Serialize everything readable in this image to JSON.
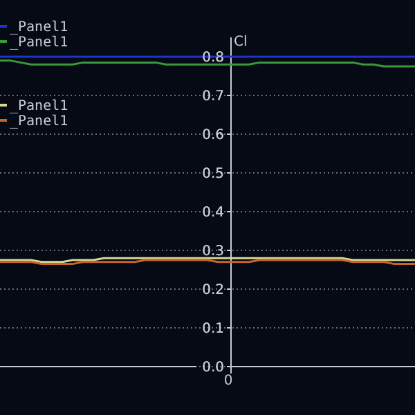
{
  "chart_data": {
    "type": "line",
    "ylabel": "Cl",
    "categories": [
      null,
      null,
      null,
      null,
      null,
      null,
      null,
      null,
      null,
      null,
      null,
      null,
      null,
      null,
      null,
      null,
      null,
      null,
      null,
      null,
      null,
      null,
      "0",
      null,
      null,
      null,
      null,
      null,
      null,
      null,
      null,
      null,
      null,
      null,
      null,
      null,
      null,
      null,
      null,
      null,
      null
    ],
    "series": [
      {
        "name": "_Panel1",
        "color": "#2233cc",
        "values": [
          0.8,
          0.8,
          0.8,
          0.8,
          0.8,
          0.8,
          0.8,
          0.8,
          0.8,
          0.8,
          0.8,
          0.8,
          0.8,
          0.8,
          0.8,
          0.8,
          0.8,
          0.8,
          0.8,
          0.8,
          0.8,
          0.8,
          0.8,
          0.8,
          0.8,
          0.8,
          0.8,
          0.8,
          0.8,
          0.8,
          0.8,
          0.8,
          0.8,
          0.8,
          0.8,
          0.8,
          0.8,
          0.8,
          0.8,
          0.8,
          0.8
        ]
      },
      {
        "name": "_Panel1",
        "color": "#3a9a3a",
        "values": [
          0.79,
          0.79,
          0.785,
          0.78,
          0.78,
          0.78,
          0.78,
          0.78,
          0.785,
          0.785,
          0.785,
          0.785,
          0.785,
          0.785,
          0.785,
          0.785,
          0.78,
          0.78,
          0.78,
          0.78,
          0.78,
          0.78,
          0.78,
          0.78,
          0.78,
          0.785,
          0.785,
          0.785,
          0.785,
          0.785,
          0.785,
          0.785,
          0.785,
          0.785,
          0.785,
          0.78,
          0.78,
          0.775,
          0.775,
          0.775,
          0.775
        ]
      },
      {
        "name": "_Panel1",
        "color": "#d8d890",
        "values": [
          0.275,
          0.275,
          0.275,
          0.275,
          0.27,
          0.27,
          0.27,
          0.275,
          0.275,
          0.275,
          0.28,
          0.28,
          0.28,
          0.28,
          0.28,
          0.28,
          0.28,
          0.28,
          0.28,
          0.28,
          0.28,
          0.28,
          0.28,
          0.28,
          0.28,
          0.28,
          0.28,
          0.28,
          0.28,
          0.28,
          0.28,
          0.28,
          0.28,
          0.28,
          0.275,
          0.275,
          0.275,
          0.275,
          0.275,
          0.275,
          0.275
        ]
      },
      {
        "name": "_Panel1",
        "color": "#c86428",
        "values": [
          0.27,
          0.27,
          0.27,
          0.27,
          0.265,
          0.265,
          0.265,
          0.265,
          0.27,
          0.27,
          0.27,
          0.27,
          0.27,
          0.27,
          0.275,
          0.275,
          0.275,
          0.275,
          0.275,
          0.275,
          0.275,
          0.27,
          0.27,
          0.27,
          0.27,
          0.275,
          0.275,
          0.275,
          0.275,
          0.275,
          0.275,
          0.275,
          0.275,
          0.275,
          0.27,
          0.27,
          0.27,
          0.27,
          0.265,
          0.265,
          0.265
        ]
      }
    ],
    "ylim": [
      0,
      0.85
    ],
    "yticks": [
      {
        "value": 0,
        "label": "0.0"
      },
      0.1,
      0.2,
      0.3,
      0.4,
      0.5,
      0.6,
      0.7,
      0.8
    ],
    "grid": "y",
    "legend": "top left",
    "marker": "none",
    "line_style": "solid"
  }
}
